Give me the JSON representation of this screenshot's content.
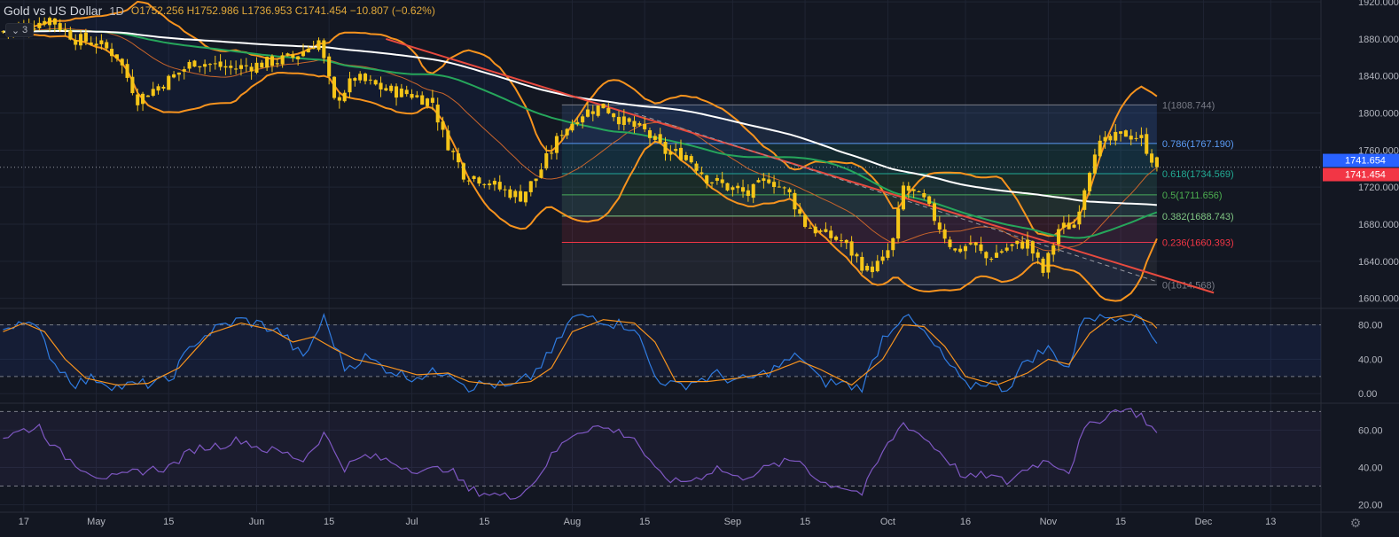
{
  "header": {
    "symbol": "Gold vs US Dollar",
    "interval": "1D",
    "ohlc": "O1752.256  H1752.986  L1736.953  C1741.454  −10.807 (−0.62%)",
    "collapse_count": "3"
  },
  "colors": {
    "background": "#131722",
    "grid": "#1f2433",
    "up": "#f5c518",
    "down": "#f5c518",
    "bollinger": "#f7931e",
    "ma_white": "#ffffff",
    "ma_green": "#26a65b",
    "ma_orange": "#c8642b",
    "trendline": "#e84a3f",
    "stoch_k": "#2f7be0",
    "stoch_d": "#f7931e",
    "rsi": "#7e57c2",
    "price_tag_blue": "#2962ff",
    "price_tag_red": "#f23645"
  },
  "chart_data": {
    "type": "candlestick",
    "title": "Gold vs US Dollar",
    "interval": "1D",
    "price_axis": {
      "ylim": [
        1592,
        1922
      ],
      "ticks": [
        "1920.000",
        "1880.000",
        "1840.000",
        "1800.000",
        "1760.000",
        "1720.000",
        "1680.000",
        "1640.000",
        "1600.000"
      ]
    },
    "x_ticks": [
      {
        "label": "17",
        "day": 0
      },
      {
        "label": "May",
        "day": 14
      },
      {
        "label": "15",
        "day": 28
      },
      {
        "label": "Jun",
        "day": 45
      },
      {
        "label": "15",
        "day": 59
      },
      {
        "label": "Jul",
        "day": 75
      },
      {
        "label": "15",
        "day": 89
      },
      {
        "label": "Aug",
        "day": 106
      },
      {
        "label": "15",
        "day": 120
      },
      {
        "label": "Sep",
        "day": 137
      },
      {
        "label": "15",
        "day": 151
      },
      {
        "label": "Oct",
        "day": 167
      },
      {
        "label": "16",
        "day": 182
      },
      {
        "label": "Nov",
        "day": 198
      },
      {
        "label": "15",
        "day": 212
      },
      {
        "label": "Dec",
        "day": 228
      },
      {
        "label": "13",
        "day": 241
      }
    ],
    "x_range_days": [
      -4.6,
      249
    ],
    "close_anchors": [
      [
        -4,
        1888
      ],
      [
        0,
        1893
      ],
      [
        5,
        1902
      ],
      [
        10,
        1880
      ],
      [
        14,
        1876
      ],
      [
        18,
        1862
      ],
      [
        22,
        1815
      ],
      [
        28,
        1836
      ],
      [
        33,
        1856
      ],
      [
        40,
        1848
      ],
      [
        45,
        1852
      ],
      [
        52,
        1860
      ],
      [
        57,
        1878
      ],
      [
        60,
        1812
      ],
      [
        64,
        1838
      ],
      [
        70,
        1825
      ],
      [
        75,
        1820
      ],
      [
        79,
        1812
      ],
      [
        81,
        1777
      ],
      [
        85,
        1735
      ],
      [
        89,
        1728
      ],
      [
        92,
        1718
      ],
      [
        96,
        1710
      ],
      [
        99,
        1730
      ],
      [
        104,
        1780
      ],
      [
        108,
        1800
      ],
      [
        112,
        1808
      ],
      [
        116,
        1790
      ],
      [
        120,
        1780
      ],
      [
        124,
        1758
      ],
      [
        128,
        1755
      ],
      [
        132,
        1730
      ],
      [
        136,
        1720
      ],
      [
        140,
        1712
      ],
      [
        144,
        1730
      ],
      [
        148,
        1712
      ],
      [
        151,
        1680
      ],
      [
        155,
        1668
      ],
      [
        158,
        1662
      ],
      [
        163,
        1630
      ],
      [
        166,
        1640
      ],
      [
        168,
        1662
      ],
      [
        170,
        1720
      ],
      [
        174,
        1705
      ],
      [
        178,
        1668
      ],
      [
        180,
        1650
      ],
      [
        183,
        1660
      ],
      [
        186,
        1643
      ],
      [
        190,
        1655
      ],
      [
        194,
        1660
      ],
      [
        197,
        1628
      ],
      [
        200,
        1675
      ],
      [
        203,
        1680
      ],
      [
        207,
        1762
      ],
      [
        210,
        1770
      ],
      [
        213,
        1778
      ],
      [
        216,
        1772
      ],
      [
        219,
        1741
      ]
    ],
    "last_bar": {
      "open": 1752.256,
      "high": 1752.986,
      "low": 1736.953,
      "close": 1741.454,
      "change": "−10.807",
      "change_pct": "−0.62%"
    },
    "price_labels": {
      "blue": "1741.654",
      "red": "1741.454"
    },
    "fibonacci": {
      "start_day": 104,
      "end_day": 219,
      "levels": [
        {
          "ratio": "1",
          "price": 1808.744,
          "text": "1(1808.744)",
          "color": "#787b86"
        },
        {
          "ratio": "0.786",
          "price": 1767.19,
          "text": "0.786(1767.190)",
          "color": "#5b9cf6"
        },
        {
          "ratio": "0.618",
          "price": 1734.569,
          "text": "0.618(1734.569)",
          "color": "#22ab94"
        },
        {
          "ratio": "0.5",
          "price": 1711.656,
          "text": "0.5(1711.656)",
          "color": "#4caf50"
        },
        {
          "ratio": "0.382",
          "price": 1688.743,
          "text": "0.382(1688.743)",
          "color": "#81c784"
        },
        {
          "ratio": "0.236",
          "price": 1660.393,
          "text": "0.236(1660.393)",
          "color": "#f23645"
        },
        {
          "ratio": "0",
          "price": 1614.568,
          "text": "0(1614.568)",
          "color": "#787b86"
        }
      ]
    },
    "trendline": {
      "from": [
        70,
        1880
      ],
      "to": [
        230,
        1606
      ]
    },
    "stochastic": {
      "ylim": [
        -8,
        95
      ],
      "ticks": [
        "80.00",
        "40.00",
        "0.00"
      ],
      "bands": [
        80,
        20
      ],
      "k_anchors": [
        [
          -4,
          75
        ],
        [
          0,
          88
        ],
        [
          3,
          70
        ],
        [
          6,
          35
        ],
        [
          10,
          12
        ],
        [
          14,
          18
        ],
        [
          18,
          8
        ],
        [
          22,
          10
        ],
        [
          28,
          15
        ],
        [
          33,
          60
        ],
        [
          38,
          78
        ],
        [
          42,
          86
        ],
        [
          46,
          80
        ],
        [
          50,
          70
        ],
        [
          54,
          40
        ],
        [
          58,
          88
        ],
        [
          62,
          30
        ],
        [
          66,
          42
        ],
        [
          70,
          30
        ],
        [
          74,
          20
        ],
        [
          78,
          22
        ],
        [
          82,
          28
        ],
        [
          86,
          8
        ],
        [
          90,
          12
        ],
        [
          94,
          6
        ],
        [
          98,
          20
        ],
        [
          102,
          48
        ],
        [
          106,
          88
        ],
        [
          110,
          90
        ],
        [
          114,
          82
        ],
        [
          118,
          78
        ],
        [
          122,
          20
        ],
        [
          126,
          8
        ],
        [
          130,
          15
        ],
        [
          134,
          22
        ],
        [
          138,
          14
        ],
        [
          142,
          20
        ],
        [
          146,
          32
        ],
        [
          150,
          45
        ],
        [
          154,
          14
        ],
        [
          158,
          12
        ],
        [
          162,
          6
        ],
        [
          166,
          65
        ],
        [
          170,
          92
        ],
        [
          174,
          70
        ],
        [
          178,
          40
        ],
        [
          182,
          8
        ],
        [
          186,
          14
        ],
        [
          190,
          6
        ],
        [
          194,
          40
        ],
        [
          198,
          52
        ],
        [
          202,
          30
        ],
        [
          205,
          92
        ],
        [
          208,
          88
        ],
        [
          212,
          92
        ],
        [
          216,
          88
        ],
        [
          219,
          62
        ]
      ],
      "d_anchors": [
        [
          -4,
          72
        ],
        [
          0,
          82
        ],
        [
          4,
          72
        ],
        [
          8,
          40
        ],
        [
          12,
          18
        ],
        [
          18,
          10
        ],
        [
          24,
          12
        ],
        [
          30,
          30
        ],
        [
          36,
          70
        ],
        [
          42,
          82
        ],
        [
          48,
          74
        ],
        [
          52,
          60
        ],
        [
          56,
          66
        ],
        [
          60,
          52
        ],
        [
          64,
          40
        ],
        [
          70,
          32
        ],
        [
          76,
          22
        ],
        [
          82,
          24
        ],
        [
          86,
          14
        ],
        [
          92,
          10
        ],
        [
          98,
          14
        ],
        [
          102,
          30
        ],
        [
          106,
          72
        ],
        [
          112,
          86
        ],
        [
          118,
          82
        ],
        [
          122,
          60
        ],
        [
          126,
          14
        ],
        [
          132,
          14
        ],
        [
          138,
          18
        ],
        [
          144,
          24
        ],
        [
          150,
          38
        ],
        [
          154,
          28
        ],
        [
          160,
          10
        ],
        [
          166,
          40
        ],
        [
          170,
          80
        ],
        [
          174,
          78
        ],
        [
          178,
          55
        ],
        [
          182,
          20
        ],
        [
          188,
          10
        ],
        [
          194,
          24
        ],
        [
          198,
          40
        ],
        [
          202,
          34
        ],
        [
          206,
          70
        ],
        [
          210,
          88
        ],
        [
          214,
          92
        ],
        [
          218,
          82
        ],
        [
          219,
          76
        ]
      ]
    },
    "rsi": {
      "ylim": [
        16,
        73
      ],
      "ticks": [
        "60.00",
        "40.00",
        "20.00"
      ],
      "bands": [
        70,
        30
      ],
      "anchors": [
        [
          -4,
          56
        ],
        [
          0,
          60
        ],
        [
          3,
          62
        ],
        [
          6,
          50
        ],
        [
          10,
          42
        ],
        [
          14,
          36
        ],
        [
          18,
          34
        ],
        [
          22,
          38
        ],
        [
          28,
          40
        ],
        [
          33,
          50
        ],
        [
          38,
          52
        ],
        [
          42,
          55
        ],
        [
          46,
          50
        ],
        [
          50,
          48
        ],
        [
          54,
          44
        ],
        [
          58,
          58
        ],
        [
          62,
          40
        ],
        [
          66,
          46
        ],
        [
          70,
          44
        ],
        [
          74,
          40
        ],
        [
          78,
          38
        ],
        [
          82,
          40
        ],
        [
          86,
          28
        ],
        [
          90,
          26
        ],
        [
          94,
          24
        ],
        [
          98,
          30
        ],
        [
          102,
          46
        ],
        [
          106,
          58
        ],
        [
          110,
          62
        ],
        [
          114,
          60
        ],
        [
          118,
          56
        ],
        [
          122,
          38
        ],
        [
          126,
          32
        ],
        [
          130,
          34
        ],
        [
          134,
          40
        ],
        [
          138,
          34
        ],
        [
          142,
          38
        ],
        [
          146,
          42
        ],
        [
          150,
          44
        ],
        [
          154,
          32
        ],
        [
          158,
          30
        ],
        [
          162,
          26
        ],
        [
          166,
          48
        ],
        [
          170,
          64
        ],
        [
          174,
          56
        ],
        [
          178,
          46
        ],
        [
          182,
          34
        ],
        [
          186,
          36
        ],
        [
          190,
          32
        ],
        [
          194,
          40
        ],
        [
          198,
          44
        ],
        [
          202,
          38
        ],
        [
          205,
          60
        ],
        [
          208,
          66
        ],
        [
          212,
          72
        ],
        [
          216,
          68
        ],
        [
          219,
          58
        ]
      ]
    }
  }
}
